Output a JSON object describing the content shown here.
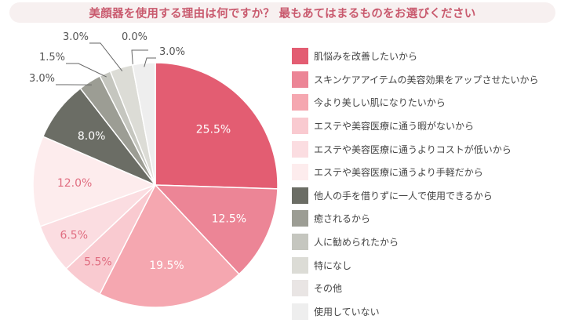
{
  "title": "美顔器を使用する理由は何ですか？ 最もあてはまるものをお選びください",
  "chart_data": {
    "type": "pie",
    "title": "美顔器を使用する理由は何ですか？ 最もあてはまるものをお選びください",
    "legend_position": "right",
    "start_angle": "top, clockwise",
    "unit": "%",
    "slices": [
      {
        "label": "肌悩みを改善したいから",
        "value": 25.5,
        "display": "25.5%",
        "color": "#e35d72"
      },
      {
        "label": "スキンケアアイテムの美容効果をアップさせたいから",
        "value": 12.5,
        "display": "12.5%",
        "color": "#ec8596"
      },
      {
        "label": "今より美しい肌になりたいから",
        "value": 19.5,
        "display": "19.5%",
        "color": "#f5a7b0"
      },
      {
        "label": "エステや美容医療に通う暇がないから",
        "value": 5.5,
        "display": "5.5%",
        "color": "#f9cad0"
      },
      {
        "label": "エステや美容医療に通うよりコストが低いから",
        "value": 6.5,
        "display": "6.5%",
        "color": "#fbdde1"
      },
      {
        "label": "エステや美容医療に通うより手軽だから",
        "value": 12.0,
        "display": "12.0%",
        "color": "#fdeced"
      },
      {
        "label": "他人の手を借りずに一人で使用できるから",
        "value": 8.0,
        "display": "8.0%",
        "color": "#6b6d65"
      },
      {
        "label": "癒されるから",
        "value": 3.0,
        "display": "3.0%",
        "color": "#9c9d94"
      },
      {
        "label": "人に勧められたから",
        "value": 1.5,
        "display": "1.5%",
        "color": "#c5c6bf"
      },
      {
        "label": "特になし",
        "value": 3.0,
        "display": "3.0%",
        "color": "#dcdcd6"
      },
      {
        "label": "その他",
        "value": 0.0,
        "display": "0.0%",
        "color": "#e9e5e4"
      },
      {
        "label": "使用していない",
        "value": 3.0,
        "display": "3.0%",
        "color": "#eeeeee"
      }
    ]
  }
}
